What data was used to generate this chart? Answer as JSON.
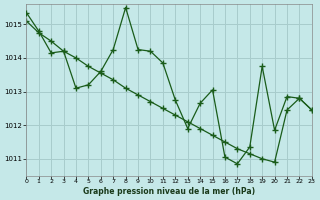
{
  "title": "Graphe pression niveau de la mer (hPa)",
  "bg_color": "#c5e8e8",
  "grid_color": "#a8cccc",
  "line_color": "#1a5c1a",
  "xlim": [
    0,
    23
  ],
  "ylim": [
    1010.5,
    1015.6
  ],
  "yticks": [
    1011,
    1012,
    1013,
    1014,
    1015
  ],
  "xticks": [
    0,
    1,
    2,
    3,
    4,
    5,
    6,
    7,
    8,
    9,
    10,
    11,
    12,
    13,
    14,
    15,
    16,
    17,
    18,
    19,
    20,
    21,
    22,
    23
  ],
  "line1_x": [
    0,
    1,
    2,
    3,
    4,
    5,
    6,
    7,
    8,
    9,
    10,
    11,
    12,
    13,
    14,
    15,
    16,
    17,
    18,
    19,
    20,
    21,
    22,
    23
  ],
  "line1_y": [
    1015.35,
    1014.8,
    1014.15,
    1014.2,
    1013.1,
    1013.2,
    1013.6,
    1014.25,
    1015.5,
    1014.25,
    1014.2,
    1013.85,
    1012.75,
    1011.9,
    1012.65,
    1013.05,
    1011.05,
    1010.85,
    1011.35,
    1013.75,
    1011.85,
    1012.85,
    1012.8,
    1012.45
  ],
  "line2_x": [
    0,
    1,
    2,
    3,
    4,
    5,
    6,
    7,
    8,
    9,
    10,
    11,
    12,
    13,
    14,
    15,
    16,
    17,
    18,
    19,
    20,
    21,
    22,
    23
  ],
  "line2_y": [
    1015.1,
    1014.75,
    1014.5,
    1014.2,
    1014.0,
    1013.75,
    1013.55,
    1013.35,
    1013.1,
    1012.9,
    1012.7,
    1012.5,
    1012.3,
    1012.1,
    1011.9,
    1011.7,
    1011.5,
    1011.3,
    1011.15,
    1011.0,
    1010.9,
    1012.45,
    1012.8,
    1012.45
  ]
}
